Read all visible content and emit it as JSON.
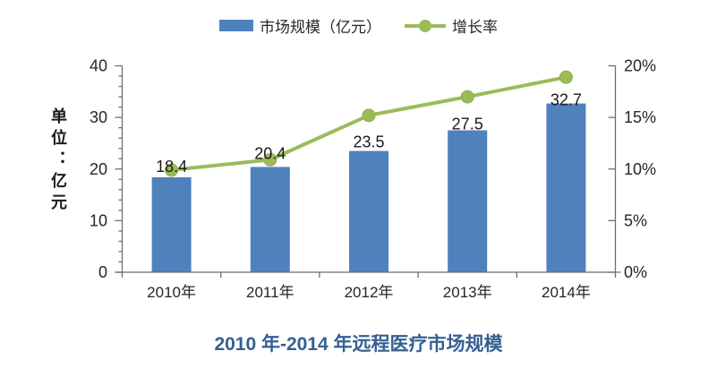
{
  "legend": {
    "bar_label": "市场规模（亿元）",
    "line_label": "增长率"
  },
  "chart_data": {
    "type": "bar",
    "subtype": "bar-line-combo",
    "title": "2010 年-2014 年远程医疗市场规模",
    "categories": [
      "2010年",
      "2011年",
      "2012年",
      "2013年",
      "2014年"
    ],
    "series": [
      {
        "name": "市场规模（亿元）",
        "type": "bar",
        "axis": "left",
        "values": [
          18.4,
          20.4,
          23.5,
          27.5,
          32.7
        ],
        "data_labels": [
          "18.4",
          "20.4",
          "23.5",
          "27.5",
          "32.7"
        ],
        "color": "#4F81BD"
      },
      {
        "name": "增长率",
        "type": "line",
        "axis": "right",
        "values_percent": [
          9.9,
          10.9,
          15.2,
          17.0,
          18.9
        ],
        "color": "#9BBB59"
      }
    ],
    "left_axis": {
      "label": "单位：亿元",
      "min": 0,
      "max": 40,
      "major_step": 10,
      "minor_step": 2,
      "tick_labels": [
        "0",
        "10",
        "20",
        "30",
        "40"
      ]
    },
    "right_axis": {
      "min": 0,
      "max": 20,
      "major_step": 5,
      "tick_labels": [
        "0%",
        "5%",
        "10%",
        "15%",
        "20%"
      ]
    },
    "legend_position": "top",
    "grid": false
  },
  "colors": {
    "bar": "#4F81BD",
    "line": "#9BBB59",
    "title": "#365F91",
    "axis_line": "#6e6e6e",
    "tick_text": "#262626"
  }
}
